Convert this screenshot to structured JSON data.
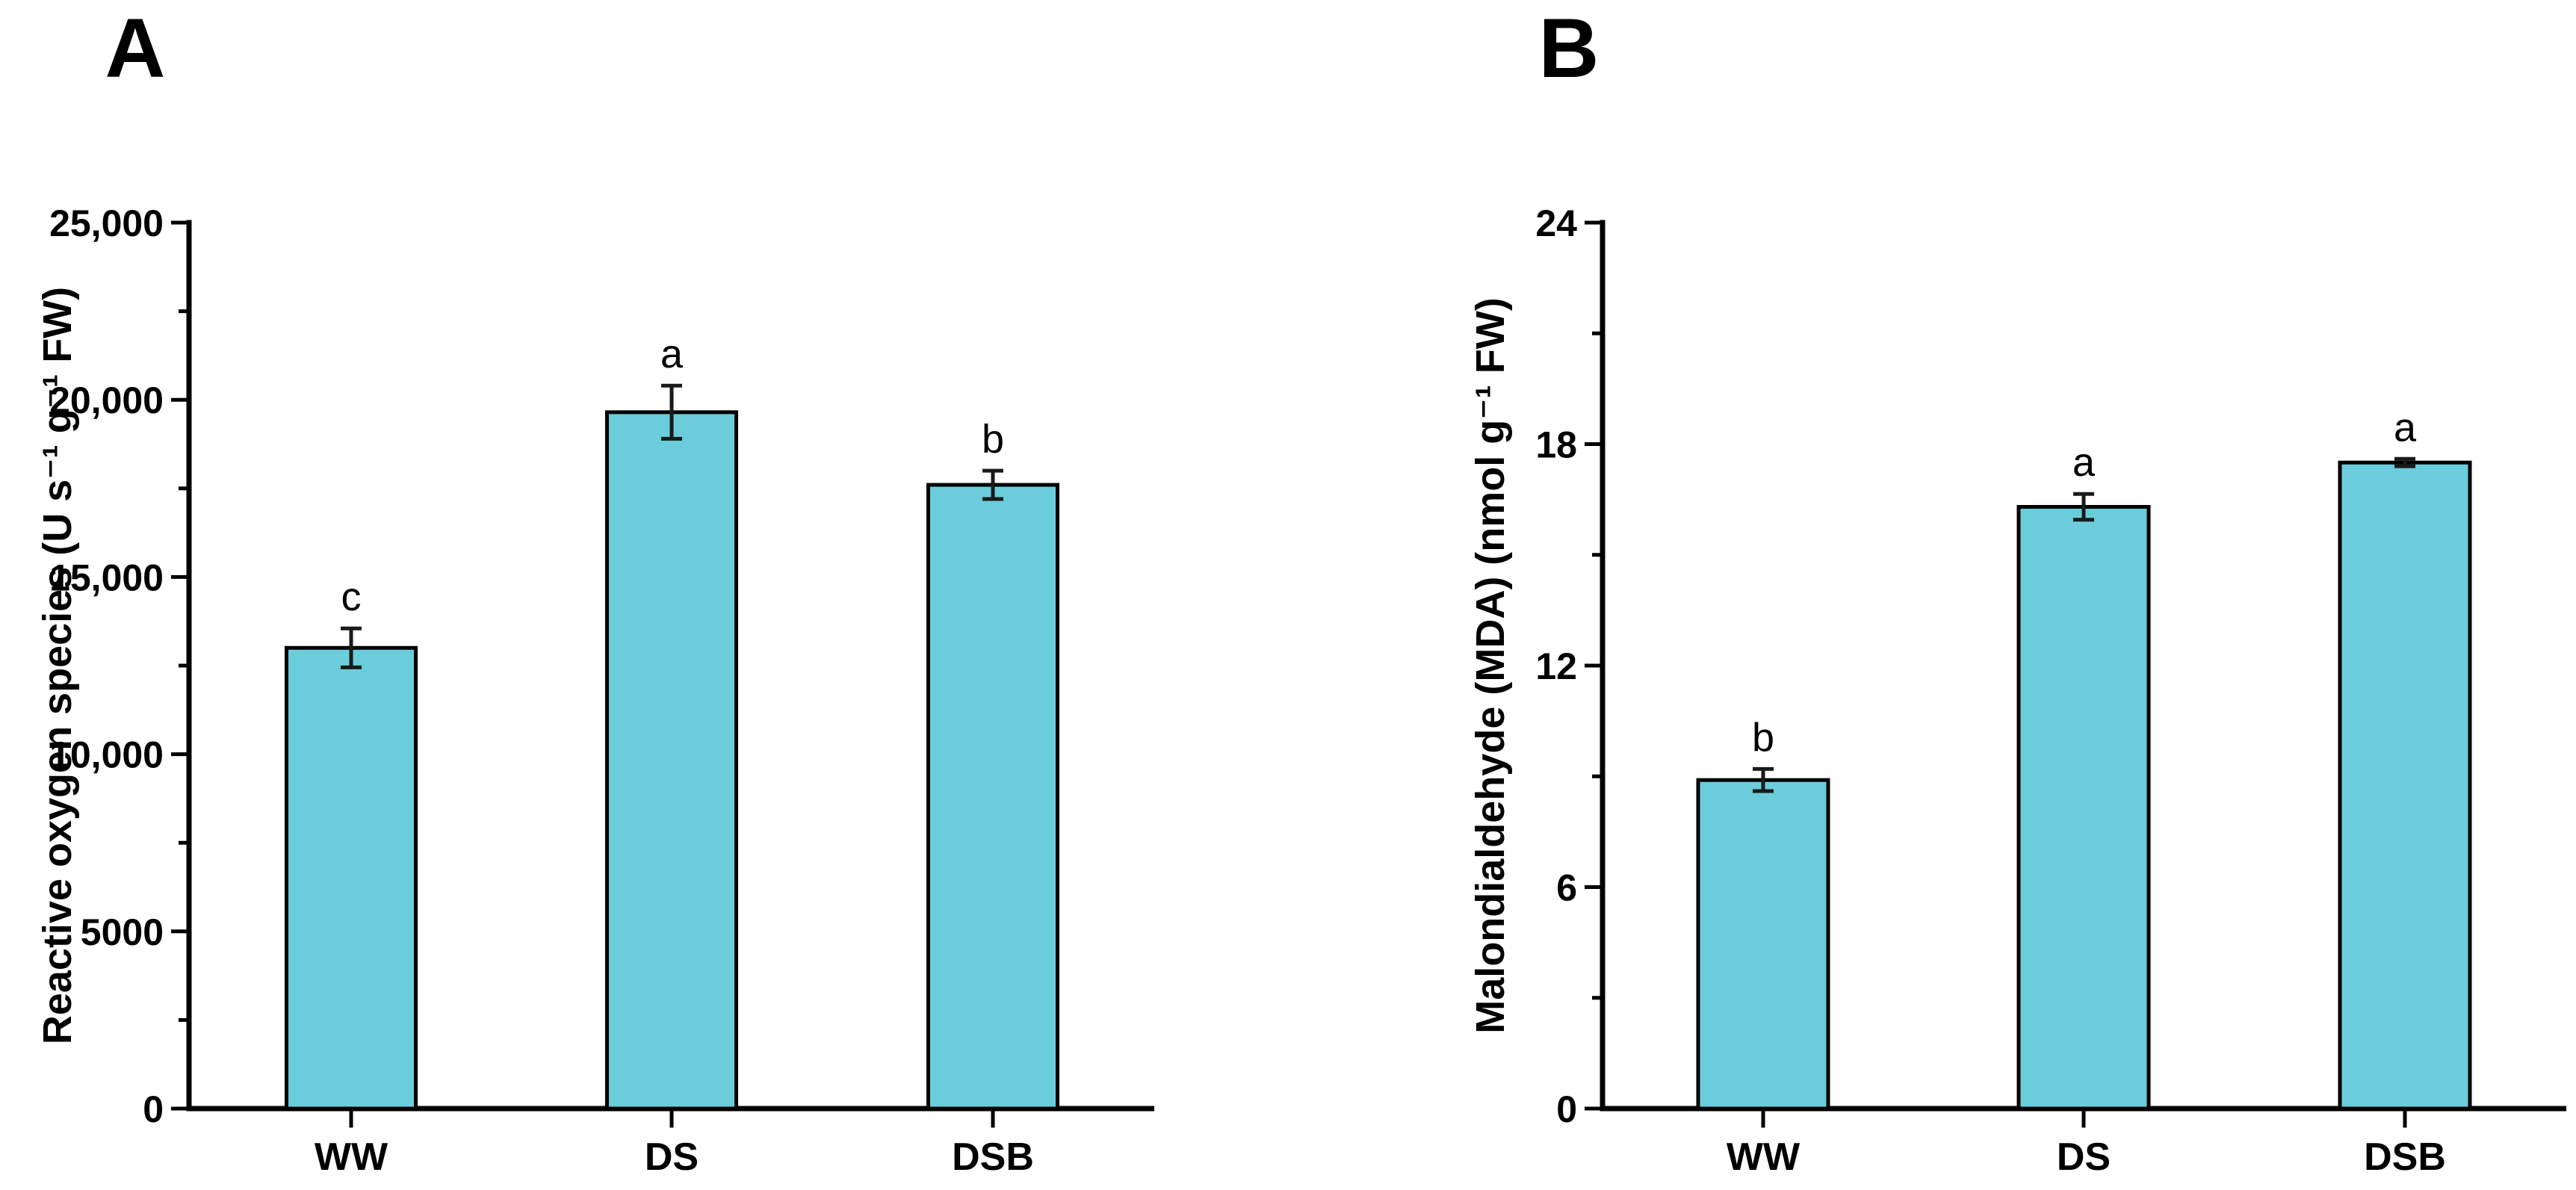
{
  "figure": {
    "background": "#ffffff",
    "bar_fill": "#6BCDDB",
    "bar_border": "#000000",
    "error_color": "#1a1a1a",
    "axis_color": "#000000"
  },
  "chart_data": [
    {
      "type": "bar",
      "panel_label": "A",
      "title": "",
      "xlabel": "",
      "ylabel": "Reactive oxygen species (U s⁻¹ g⁻¹ FW)",
      "categories": [
        "WW",
        "DS",
        "DSB"
      ],
      "values": [
        13000,
        19650,
        17600
      ],
      "errors": [
        550,
        750,
        400
      ],
      "sig_letters": [
        "c",
        "a",
        "b"
      ],
      "ylim": [
        0,
        25000
      ],
      "ytick_values": [
        0,
        5000,
        10000,
        15000,
        20000,
        25000
      ],
      "ytick_labels": [
        "0",
        "5000",
        "10,000",
        "15,000",
        "20,000",
        "25,000"
      ],
      "minor_tick_step": 2500,
      "grid": false,
      "legend": "none"
    },
    {
      "type": "bar",
      "panel_label": "B",
      "title": "",
      "xlabel": "",
      "ylabel": "Malondialdehyde (MDA) (nmol g⁻¹ FW)",
      "categories": [
        "WW",
        "DS",
        "DSB"
      ],
      "values": [
        8.9,
        16.3,
        17.5
      ],
      "errors": [
        0.3,
        0.35,
        0.1
      ],
      "sig_letters": [
        "b",
        "a",
        "a"
      ],
      "ylim": [
        0,
        24
      ],
      "ytick_values": [
        0,
        6,
        12,
        18,
        24
      ],
      "ytick_labels": [
        "0",
        "6",
        "12",
        "18",
        "24"
      ],
      "minor_tick_step": 3,
      "grid": false,
      "legend": "none"
    }
  ]
}
